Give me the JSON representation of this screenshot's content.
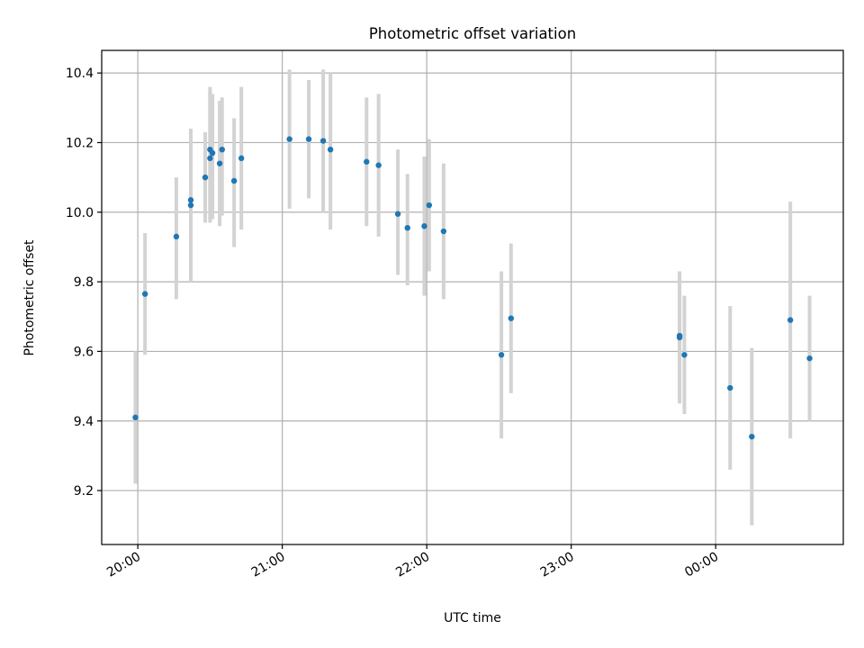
{
  "chart_data": {
    "type": "scatter",
    "title": "Photometric offset variation",
    "xlabel": "UTC time",
    "ylabel": "Photometric offset",
    "x_ticks": [
      "20:00",
      "21:00",
      "22:00",
      "23:00",
      "00:00"
    ],
    "y_ticks": [
      "9.2",
      "9.4",
      "9.6",
      "9.8",
      "10.0",
      "10.2",
      "10.4"
    ],
    "xlim": [
      "2023-01-01T19:45",
      "2023-01-02T00:53"
    ],
    "ylim": [
      9.045,
      10.465
    ],
    "grid": true,
    "errorbar_color": "#d3d3d3",
    "marker_color": "#1f77b4",
    "points": [
      {
        "t": "19:59",
        "y": 9.41,
        "lo": 9.22,
        "hi": 9.6
      },
      {
        "t": "20:03",
        "y": 9.765,
        "lo": 9.59,
        "hi": 9.94
      },
      {
        "t": "20:16",
        "y": 9.93,
        "lo": 9.75,
        "hi": 10.1
      },
      {
        "t": "20:22",
        "y": 10.02,
        "lo": 9.8,
        "hi": 10.24
      },
      {
        "t": "20:22",
        "y": 10.035,
        "lo": 9.83,
        "hi": 10.24
      },
      {
        "t": "20:28",
        "y": 10.1,
        "lo": 9.97,
        "hi": 10.23
      },
      {
        "t": "20:30",
        "y": 10.18,
        "lo": 9.98,
        "hi": 10.35
      },
      {
        "t": "20:30",
        "y": 10.155,
        "lo": 9.97,
        "hi": 10.36
      },
      {
        "t": "20:31",
        "y": 10.17,
        "lo": 9.98,
        "hi": 10.34
      },
      {
        "t": "20:34",
        "y": 10.14,
        "lo": 9.96,
        "hi": 10.32
      },
      {
        "t": "20:35",
        "y": 10.18,
        "lo": 9.99,
        "hi": 10.33
      },
      {
        "t": "20:40",
        "y": 10.09,
        "lo": 9.9,
        "hi": 10.27
      },
      {
        "t": "20:43",
        "y": 10.155,
        "lo": 9.95,
        "hi": 10.36
      },
      {
        "t": "21:03",
        "y": 10.21,
        "lo": 10.01,
        "hi": 10.41
      },
      {
        "t": "21:11",
        "y": 10.21,
        "lo": 10.04,
        "hi": 10.38
      },
      {
        "t": "21:17",
        "y": 10.205,
        "lo": 10.0,
        "hi": 10.41
      },
      {
        "t": "21:20",
        "y": 10.18,
        "lo": 9.95,
        "hi": 10.4
      },
      {
        "t": "21:35",
        "y": 10.145,
        "lo": 9.96,
        "hi": 10.33
      },
      {
        "t": "21:40",
        "y": 10.135,
        "lo": 9.93,
        "hi": 10.34
      },
      {
        "t": "21:48",
        "y": 9.995,
        "lo": 9.82,
        "hi": 10.18
      },
      {
        "t": "21:52",
        "y": 9.955,
        "lo": 9.79,
        "hi": 10.11
      },
      {
        "t": "21:59",
        "y": 9.96,
        "lo": 9.76,
        "hi": 10.16
      },
      {
        "t": "22:01",
        "y": 10.02,
        "lo": 9.83,
        "hi": 10.21
      },
      {
        "t": "22:07",
        "y": 9.945,
        "lo": 9.75,
        "hi": 10.14
      },
      {
        "t": "22:31",
        "y": 9.59,
        "lo": 9.35,
        "hi": 9.83
      },
      {
        "t": "22:35",
        "y": 9.695,
        "lo": 9.48,
        "hi": 9.91
      },
      {
        "t": "23:45",
        "y": 9.645,
        "lo": 9.46,
        "hi": 9.83
      },
      {
        "t": "23:45",
        "y": 9.64,
        "lo": 9.45,
        "hi": 9.83
      },
      {
        "t": "23:47",
        "y": 9.59,
        "lo": 9.42,
        "hi": 9.76
      },
      {
        "t": "00:06",
        "y": 9.495,
        "lo": 9.26,
        "hi": 9.73
      },
      {
        "t": "00:15",
        "y": 9.355,
        "lo": 9.1,
        "hi": 9.61
      },
      {
        "t": "00:31",
        "y": 9.69,
        "lo": 9.35,
        "hi": 10.03
      },
      {
        "t": "00:39",
        "y": 9.58,
        "lo": 9.4,
        "hi": 9.76
      }
    ]
  }
}
